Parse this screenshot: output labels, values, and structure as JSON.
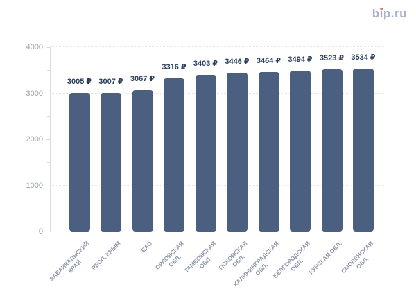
{
  "logo": {
    "text": "bip.ru",
    "color": "#a8b1c7",
    "dot_color": "#ef7350"
  },
  "chart_data": {
    "type": "bar",
    "title": "",
    "xlabel": "",
    "ylabel": "",
    "legend": "none",
    "categories": [
      "ЗАБАЙКАЛЬСКИЙ КРАЙ",
      "РЕСП. КРЫМ",
      "ЕАО",
      "ОРЛОВСКАЯ ОБЛ.",
      "ТАМБОВСКАЯ ОБЛ.",
      "ПСКОВСКАЯ ОБЛ.",
      "КАЛИНИНГРАДСКАЯ ОБЛ.",
      "БЕЛГОРОДСКАЯ ОБЛ.",
      "КУРСКАЯ ОБЛ.",
      "СМОЛЕНСКАЯ ОБЛ."
    ],
    "category_lines": [
      [
        "ЗАБАЙКАЛЬСКИЙ",
        "КРАЙ"
      ],
      [
        "РЕСП. КРЫМ"
      ],
      [
        "ЕАО"
      ],
      [
        "ОРЛОВСКАЯ",
        "ОБЛ."
      ],
      [
        "ТАМБОВСКАЯ",
        "ОБЛ."
      ],
      [
        "ПСКОВСКАЯ",
        "ОБЛ."
      ],
      [
        "КАЛИНИНГРАДСКАЯ",
        "ОБЛ."
      ],
      [
        "БЕЛГОРОДСКАЯ",
        "ОБЛ."
      ],
      [
        "КУРСКАЯ ОБЛ."
      ],
      [
        "СМОЛЕНСКАЯ",
        "ОБЛ."
      ]
    ],
    "values": [
      3005,
      3007,
      3067,
      3316,
      3403,
      3446,
      3464,
      3494,
      3523,
      3534
    ],
    "value_labels": [
      "3005 ₽",
      "3007 ₽",
      "3067 ₽",
      "3316 ₽",
      "3403 ₽",
      "3446 ₽",
      "3464 ₽",
      "3494 ₽",
      "3523 ₽",
      "3534 ₽"
    ],
    "ylim": [
      0,
      4000
    ],
    "yticks": [
      0,
      1000,
      2000,
      3000,
      4000
    ],
    "minor_tick_step": 500,
    "grid": "horizontal dotted at major ticks",
    "colors": {
      "bar": "#4b6080",
      "value_label": "#2b3f5e",
      "axis_line": "#d9dce3",
      "gridline": "#e2e4e9",
      "y_tick_label": "#9aa1ae",
      "x_tick_label": "#8d96a8"
    }
  }
}
